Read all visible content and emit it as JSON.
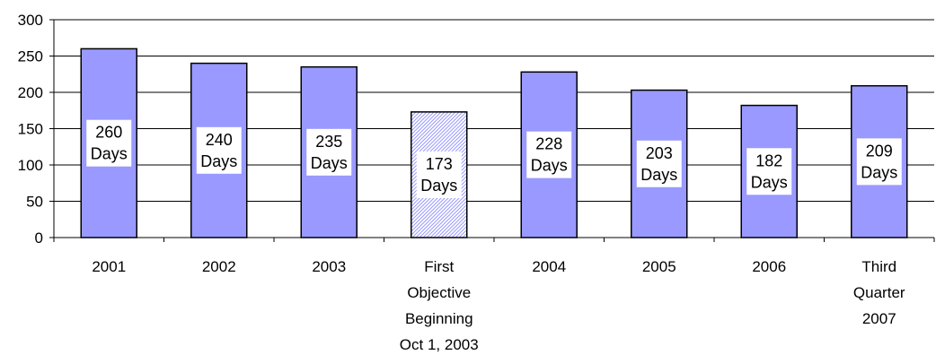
{
  "chart_data": {
    "type": "bar",
    "categories": [
      [
        "2001"
      ],
      [
        "2002"
      ],
      [
        "2003"
      ],
      [
        "First",
        "Objective",
        "Beginning",
        "Oct 1, 2003"
      ],
      [
        "2004"
      ],
      [
        "2005"
      ],
      [
        "2006"
      ],
      [
        "Third",
        "Quarter",
        "2007"
      ]
    ],
    "values": [
      260,
      240,
      235,
      173,
      228,
      203,
      182,
      209
    ],
    "data_labels": [
      [
        "260",
        "Days"
      ],
      [
        "240",
        "Days"
      ],
      [
        "235",
        "Days"
      ],
      [
        "173",
        "Days"
      ],
      [
        "228",
        "Days"
      ],
      [
        "203",
        "Days"
      ],
      [
        "182",
        "Days"
      ],
      [
        "209",
        "Days"
      ]
    ],
    "yticks": [
      "0",
      "50",
      "100",
      "150",
      "200",
      "250",
      "300"
    ],
    "ylim": [
      0,
      300
    ],
    "grid": true,
    "bar_styles": [
      "solid",
      "solid",
      "solid",
      "hatched",
      "solid",
      "solid",
      "solid",
      "solid"
    ],
    "colors": {
      "bar": "#9999ff",
      "hatch": "#9999ff",
      "outline": "#000000",
      "grid": "#000000"
    }
  }
}
